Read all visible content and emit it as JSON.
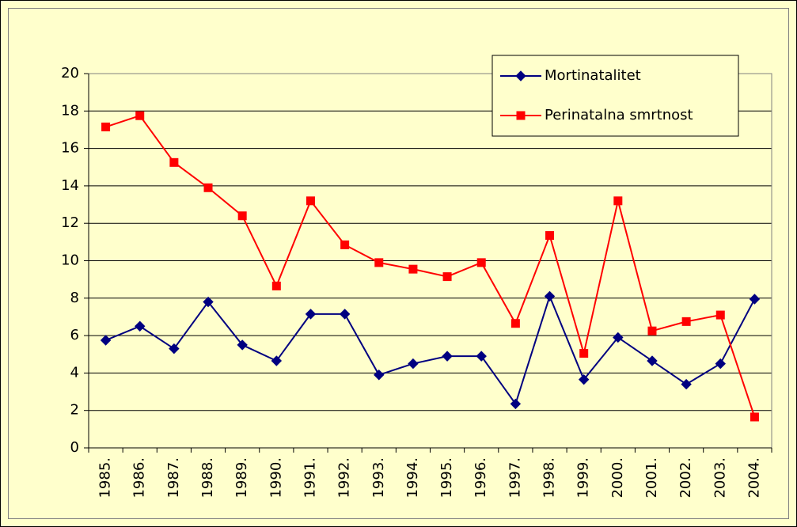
{
  "chart_data": {
    "type": "line",
    "categories": [
      "1985.",
      "1986.",
      "1987.",
      "1988.",
      "1989.",
      "1990.",
      "1991.",
      "1992.",
      "1993.",
      "1994.",
      "1995.",
      "1996.",
      "1997.",
      "1998.",
      "1999.",
      "2000.",
      "2001.",
      "2002.",
      "2003.",
      "2004."
    ],
    "series": [
      {
        "name": "Mortinatalitet",
        "color": "#000080",
        "marker": "diamond",
        "values": [
          5.75,
          6.5,
          5.3,
          7.8,
          5.5,
          4.65,
          7.15,
          7.15,
          3.9,
          4.5,
          4.9,
          4.9,
          2.35,
          8.1,
          3.65,
          5.9,
          4.65,
          3.4,
          4.5,
          7.95
        ]
      },
      {
        "name": "Perinatalna smrtnost",
        "color": "#ff0000",
        "marker": "square",
        "values": [
          17.15,
          17.75,
          15.25,
          13.9,
          12.4,
          8.65,
          13.2,
          10.85,
          9.9,
          9.55,
          9.15,
          9.9,
          6.65,
          11.35,
          5.05,
          13.2,
          6.25,
          6.75,
          7.1,
          1.65
        ]
      }
    ],
    "ylim": [
      0,
      20
    ],
    "yticks": [
      0,
      2,
      4,
      6,
      8,
      10,
      12,
      14,
      16,
      18,
      20
    ],
    "grid": true,
    "legend": "upper right"
  }
}
